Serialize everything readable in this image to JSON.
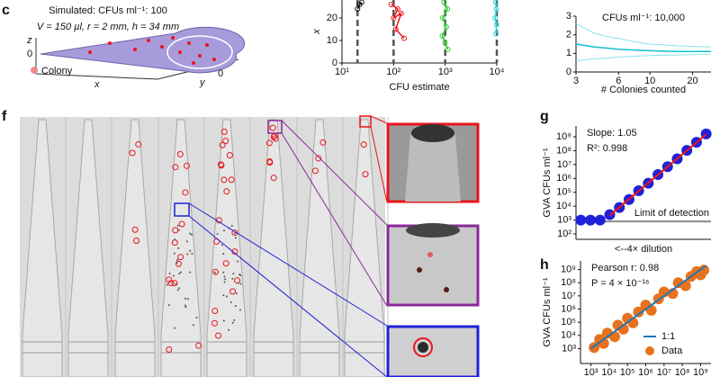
{
  "panels": {
    "c": {
      "label": "c",
      "line1": "Simulated: CFUs ml⁻¹: 100",
      "line2": "V = 150 µl, r = 2 mm, h = 34 mm",
      "axis_z": "z",
      "z_zero": "0",
      "axis_x": "x",
      "axis_y": "y",
      "y_zero": "0",
      "legend": "Colony"
    },
    "f": {
      "label": "f"
    },
    "g": {
      "label": "g"
    },
    "h": {
      "label": "h"
    }
  },
  "chart_data": [
    {
      "type": "line",
      "xlabel": "CFU estimate",
      "ylabel": "x",
      "xscale": "log",
      "xlim": [
        10,
        10000
      ],
      "xticks": [
        {
          "value": 10,
          "label": "10¹"
        },
        {
          "value": 100,
          "label": "10²"
        },
        {
          "value": 1000,
          "label": "10³"
        },
        {
          "value": 10000,
          "label": "10⁴"
        }
      ],
      "ylim": [
        0,
        28
      ],
      "yticks": [
        0,
        10,
        20
      ],
      "reference_x": [
        20,
        100,
        1000,
        10000
      ],
      "reference_color": "#555555",
      "markers": true,
      "series": [
        {
          "color": "#111111",
          "x": [
            20,
            22,
            24
          ],
          "values": [
            24,
            26,
            27
          ]
        },
        {
          "color": "#e8141b",
          "x": [
            90,
            120,
            100,
            140,
            110,
            160
          ],
          "values": [
            26,
            24,
            20,
            22,
            15,
            11
          ]
        },
        {
          "color": "#2ec92e",
          "x": [
            950,
            1100,
            900,
            1050,
            880,
            1000,
            1120
          ],
          "values": [
            27,
            24,
            20,
            16,
            12,
            9,
            6
          ]
        },
        {
          "color": "#29d3e0",
          "x": [
            9500,
            9800,
            9300,
            9900,
            9600
          ],
          "values": [
            27,
            24,
            20,
            17,
            13
          ]
        }
      ]
    },
    {
      "type": "line",
      "title": "CFUs ml⁻¹: 10,000",
      "xlabel": "# Colonies counted",
      "xscale": "log",
      "xlim": [
        3,
        27
      ],
      "xticks": [
        3,
        6,
        10,
        20
      ],
      "ylim": [
        0,
        3
      ],
      "yticks": [
        0,
        1,
        2,
        3
      ],
      "series": [
        {
          "color": "#12c0d0",
          "x": [
            3,
            4,
            5,
            6,
            8,
            10,
            13,
            16,
            20,
            27
          ],
          "values": [
            1.5,
            1.35,
            1.28,
            1.22,
            1.17,
            1.14,
            1.12,
            1.1,
            1.1,
            1.1
          ]
        }
      ],
      "band": {
        "color": "#8fe3ea",
        "upper": [
          2.6,
          2.1,
          1.9,
          1.8,
          1.6,
          1.5,
          1.45,
          1.4,
          1.38,
          1.35
        ],
        "lower": [
          0.6,
          0.7,
          0.75,
          0.8,
          0.85,
          0.88,
          0.9,
          0.92,
          0.93,
          0.95
        ]
      }
    },
    {
      "type": "scatter",
      "xlabel": "<--4× dilution",
      "ylabel": "GVA CFUs ml⁻¹",
      "yscale": "log",
      "annotations": [
        "Slope: 1.05",
        "R²: 0.998"
      ],
      "categories": [
        null,
        null,
        null,
        null,
        null,
        null,
        null,
        null,
        null,
        null,
        null,
        null,
        null,
        null
      ],
      "ylim": [
        41,
        6000000000
      ],
      "yticks": [
        {
          "value": 100,
          "label": "10²"
        },
        {
          "value": 1000,
          "label": "10³"
        },
        {
          "value": 10000,
          "label": "10⁴"
        },
        {
          "value": 100000,
          "label": "10⁵"
        },
        {
          "value": 1000000,
          "label": "10⁶"
        },
        {
          "value": 10000000,
          "label": "10⁷"
        },
        {
          "value": 100000000,
          "label": "10⁸"
        },
        {
          "value": 1000000000,
          "label": "10⁹"
        }
      ],
      "limit_of_detection": {
        "value": 800,
        "label": "Limit of detection",
        "color": "#8a8a8a"
      },
      "series": [
        {
          "color": "#1f22d8",
          "marker": "circle",
          "values": [
            1000,
            1000,
            1000,
            2500,
            8000,
            30000,
            130000,
            450000,
            1900000,
            7000000,
            26000000,
            105000000,
            400000000,
            1600000000
          ]
        },
        {
          "color": "#e8141b",
          "marker": "line",
          "values": [
            null,
            null,
            null,
            2200,
            8430,
            32300,
            124000,
            474000,
            1820000,
            6960000,
            26700000,
            102000000,
            391000000,
            1500000000
          ]
        }
      ]
    },
    {
      "type": "scatter",
      "ylabel": "GVA CFUs ml⁻¹",
      "xscale": "log",
      "yscale": "log",
      "annotations": [
        "Pearson r: 0.98",
        "P = 4 × 10⁻¹⁶"
      ],
      "xlim": [
        270,
        3700000000
      ],
      "ylim": [
        74,
        4500000000
      ],
      "xticks": [
        {
          "value": 1000,
          "label": "10³"
        },
        {
          "value": 10000,
          "label": "10⁴"
        },
        {
          "value": 100000,
          "label": "10⁵"
        },
        {
          "value": 1000000,
          "label": "10⁶"
        },
        {
          "value": 10000000,
          "label": "10⁷"
        },
        {
          "value": 100000000,
          "label": "10⁸"
        },
        {
          "value": 1000000000,
          "label": "10⁹"
        }
      ],
      "yticks": [
        {
          "value": 1000,
          "label": "10³"
        },
        {
          "value": 10000,
          "label": "10⁴"
        },
        {
          "value": 100000,
          "label": "10⁵"
        },
        {
          "value": 1000000,
          "label": "10⁶"
        },
        {
          "value": 10000000,
          "label": "10⁷"
        },
        {
          "value": 100000000,
          "label": "10⁸"
        },
        {
          "value": 1000000000,
          "label": "10⁹"
        }
      ],
      "series": [
        {
          "name": "Data",
          "color": "#e8711d",
          "marker": "circle",
          "x": [
            1500,
            3000,
            5000,
            8000,
            20000,
            30000,
            60000,
            100000,
            200000,
            400000,
            1000000,
            2000000,
            5000000,
            10000000,
            30000000,
            60000000,
            150000000,
            300000000,
            600000000,
            1000000000,
            1500000000
          ],
          "values": [
            1200,
            5000,
            2500,
            15000,
            8000,
            60000,
            30000,
            200000,
            90000,
            600000,
            2000000,
            800000,
            6000000,
            20000000,
            15000000,
            100000000,
            60000000,
            300000000,
            700000000,
            400000000,
            900000000
          ]
        },
        {
          "name": "1:1",
          "color": "#1f77b4",
          "marker": "line",
          "x": [
            1000,
            2000000000
          ],
          "values": [
            1000,
            2000000000
          ]
        }
      ]
    }
  ]
}
